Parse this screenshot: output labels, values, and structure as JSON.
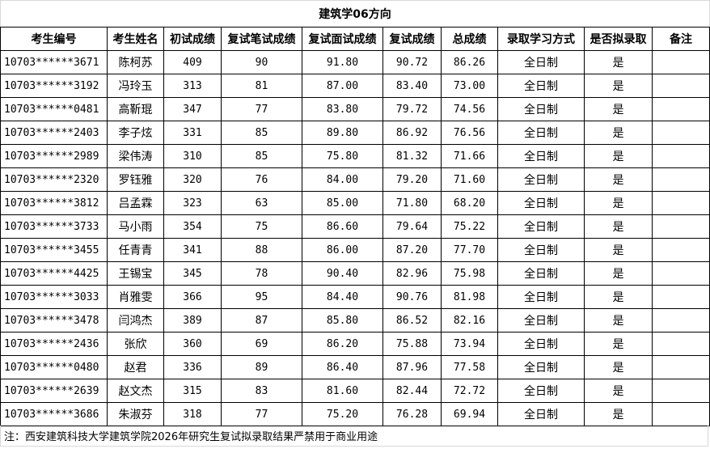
{
  "title": "建筑学06方向",
  "columns": [
    "考生编号",
    "考生姓名",
    "初试成绩",
    "复试笔试成绩",
    "复试面试成绩",
    "复试成绩",
    "总成绩",
    "录取学习方式",
    "是否拟录取",
    "备注"
  ],
  "rows": [
    [
      "10703******3671",
      "陈柯苏",
      "409",
      "90",
      "91.80",
      "90.72",
      "86.26",
      "全日制",
      "是",
      ""
    ],
    [
      "10703******3192",
      "冯玲玉",
      "313",
      "81",
      "87.00",
      "83.40",
      "73.00",
      "全日制",
      "是",
      ""
    ],
    [
      "10703******0481",
      "高靳琨",
      "347",
      "77",
      "83.80",
      "79.72",
      "74.56",
      "全日制",
      "是",
      ""
    ],
    [
      "10703******2403",
      "李子炫",
      "331",
      "85",
      "89.80",
      "86.92",
      "76.56",
      "全日制",
      "是",
      ""
    ],
    [
      "10703******2989",
      "梁伟涛",
      "310",
      "85",
      "75.80",
      "81.32",
      "71.66",
      "全日制",
      "是",
      ""
    ],
    [
      "10703******2320",
      "罗钰雅",
      "320",
      "76",
      "84.00",
      "79.20",
      "71.60",
      "全日制",
      "是",
      ""
    ],
    [
      "10703******3812",
      "吕孟霖",
      "323",
      "63",
      "85.00",
      "71.80",
      "68.20",
      "全日制",
      "是",
      ""
    ],
    [
      "10703******3733",
      "马小雨",
      "354",
      "75",
      "86.60",
      "79.64",
      "75.22",
      "全日制",
      "是",
      ""
    ],
    [
      "10703******3455",
      "任青青",
      "341",
      "88",
      "86.00",
      "87.20",
      "77.70",
      "全日制",
      "是",
      ""
    ],
    [
      "10703******4425",
      "王锡宝",
      "345",
      "78",
      "90.40",
      "82.96",
      "75.98",
      "全日制",
      "是",
      ""
    ],
    [
      "10703******3033",
      "肖雅雯",
      "366",
      "95",
      "84.40",
      "90.76",
      "81.98",
      "全日制",
      "是",
      ""
    ],
    [
      "10703******3478",
      "闫鸿杰",
      "389",
      "87",
      "85.80",
      "86.52",
      "82.16",
      "全日制",
      "是",
      ""
    ],
    [
      "10703******2436",
      "张欣",
      "360",
      "69",
      "86.20",
      "75.88",
      "73.94",
      "全日制",
      "是",
      ""
    ],
    [
      "10703******0480",
      "赵君",
      "336",
      "89",
      "86.40",
      "87.96",
      "77.58",
      "全日制",
      "是",
      ""
    ],
    [
      "10703******2639",
      "赵文杰",
      "315",
      "83",
      "81.60",
      "82.44",
      "72.72",
      "全日制",
      "是",
      ""
    ],
    [
      "10703******3686",
      "朱淑芬",
      "318",
      "77",
      "75.20",
      "76.28",
      "69.94",
      "全日制",
      "是",
      ""
    ]
  ],
  "footer": "注：西安建筑科技大学建筑学院2026年研究生复试拟录取结果严禁用于商业用途"
}
